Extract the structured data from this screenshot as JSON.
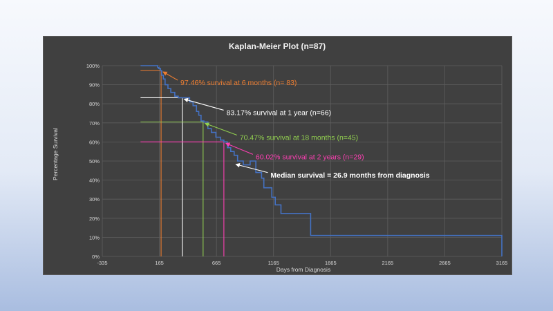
{
  "chart_data": {
    "type": "line",
    "title": "Kaplan-Meier Plot (n=87)",
    "xlabel": "Days from Diagnosis",
    "ylabel": "Percentage Survival",
    "xlim": [
      -335,
      3165
    ],
    "ylim": [
      0,
      100
    ],
    "x_ticks": [
      -335,
      165,
      665,
      1165,
      1665,
      2165,
      2665,
      3165
    ],
    "x_tick_labels": [
      "-335",
      "165",
      "665",
      "1165",
      "1665",
      "2165",
      "2665",
      "3165"
    ],
    "y_ticks": [
      0,
      10,
      20,
      30,
      40,
      50,
      60,
      70,
      80,
      90,
      100
    ],
    "y_tick_labels": [
      "0%",
      "10%",
      "20%",
      "30%",
      "40%",
      "50%",
      "60%",
      "70%",
      "80%",
      "90%",
      "100%"
    ],
    "grid": true,
    "series": [
      {
        "color": "#4472c4",
        "x": [
          0,
          140,
          150,
          160,
          175,
          185,
          200,
          215,
          240,
          265,
          300,
          330,
          360,
          400,
          430,
          460,
          490,
          510,
          530,
          555,
          590,
          620,
          660,
          700,
          730,
          760,
          790,
          820,
          850,
          900,
          960,
          1010,
          1060,
          1080,
          1110,
          1150,
          1180,
          1230,
          1490,
          3165
        ],
        "y": [
          100,
          100,
          99,
          98.5,
          97.46,
          95,
          93,
          90,
          88,
          86,
          84,
          83.17,
          83.17,
          83.17,
          81,
          79,
          76,
          74,
          71,
          70.47,
          67,
          65,
          62.5,
          61,
          60.02,
          57,
          55,
          53,
          50,
          48,
          50,
          44,
          41,
          36,
          36,
          31,
          27,
          22.5,
          11,
          0
        ]
      }
    ],
    "guide_lines": [
      {
        "x": 180,
        "y": 97.46,
        "color": "#ed7d31"
      },
      {
        "x": 365,
        "y": 83.17,
        "color": "#ffffff"
      },
      {
        "x": 548,
        "y": 70.47,
        "color": "#92d050"
      },
      {
        "x": 730,
        "y": 60.02,
        "color": "#ff3fb4"
      }
    ],
    "annotations": [
      {
        "text": "97.46% survival at 6 months (n= 83)",
        "color": "#ed7d31",
        "x": 180,
        "y": 97.46
      },
      {
        "text": "83.17% survival at 1 year (n=66)",
        "color": "#ffffff",
        "x": 365,
        "y": 83.17
      },
      {
        "text": "70.47% survival at 18 months (n=45)",
        "color": "#92d050",
        "x": 548,
        "y": 70.47
      },
      {
        "text": "60.02% survival at 2 years (n=29)",
        "color": "#ff3fb4",
        "x": 730,
        "y": 60.02
      },
      {
        "text": "Median survival = 26.9 months from diagnosis",
        "color": "#ffffff",
        "bold": true,
        "x": 818,
        "y": 49
      }
    ]
  }
}
